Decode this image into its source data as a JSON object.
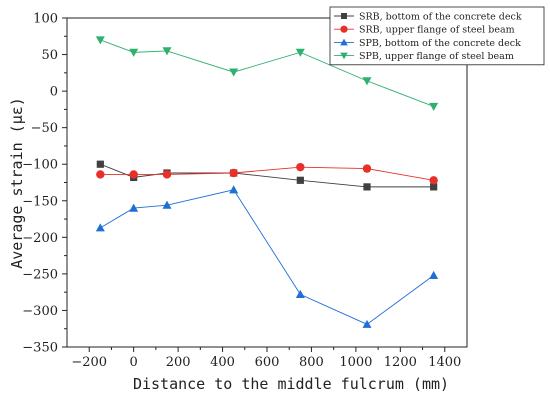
{
  "chart_data": {
    "type": "line",
    "xlabel": "Distance to the middle fulcrum (mm)",
    "ylabel": "Average strain (με)",
    "xlim": [
      -300,
      1500
    ],
    "ylim": [
      -350,
      100
    ],
    "xticks": [
      -200,
      0,
      200,
      400,
      600,
      800,
      1000,
      1200,
      1400
    ],
    "xtick_labels": [
      "−200",
      "0",
      "200",
      "400",
      "600",
      "800",
      "1000",
      "1200",
      "1400"
    ],
    "yticks": [
      100,
      50,
      0,
      -50,
      -100,
      -150,
      -200,
      -250,
      -300,
      -350
    ],
    "ytick_labels": [
      "100",
      "50",
      "0",
      "−50",
      "−100",
      "−150",
      "−200",
      "−250",
      "−300",
      "−350"
    ],
    "grid": false,
    "legend_position": "top-right",
    "series": [
      {
        "name": "SRB, bottom of the concrete deck",
        "color": "#404040",
        "marker": "square",
        "x": [
          -150,
          0,
          150,
          450,
          750,
          1050,
          1350
        ],
        "y": [
          -100,
          -118,
          -112,
          -112,
          -122,
          -131,
          -131
        ]
      },
      {
        "name": "SRB, upper flange of steel beam",
        "color": "#e8302a",
        "marker": "circle",
        "x": [
          -150,
          0,
          150,
          450,
          750,
          1050,
          1350
        ],
        "y": [
          -114,
          -114,
          -114,
          -112,
          -104,
          -106,
          -122
        ]
      },
      {
        "name": "SPB, bottom of the concrete deck",
        "color": "#1f6fd6",
        "marker": "triangle-up",
        "x": [
          -150,
          0,
          150,
          450,
          750,
          1050,
          1350
        ],
        "y": [
          -187,
          -160,
          -156,
          -135,
          -278,
          -319,
          -252
        ]
      },
      {
        "name": "SPB, upper flange of steel beam",
        "color": "#2fb06f",
        "marker": "triangle-down",
        "x": [
          -150,
          0,
          150,
          450,
          750,
          1050,
          1350
        ],
        "y": [
          70,
          53,
          55,
          26,
          53,
          14,
          -21
        ]
      }
    ]
  }
}
